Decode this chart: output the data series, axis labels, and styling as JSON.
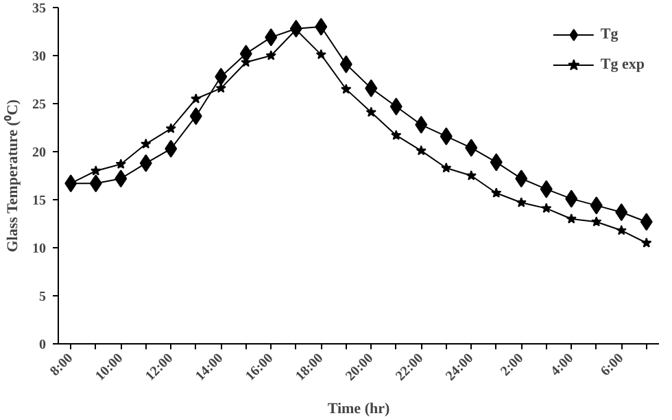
{
  "chart_data": {
    "type": "line",
    "xlabel": "Time (hr)",
    "ylabel": "Glass Temperature (⁰C)",
    "categories": [
      "8:00",
      null,
      "10:00",
      null,
      "12:00",
      null,
      "14:00",
      null,
      "16:00",
      null,
      "18:00",
      null,
      "20:00",
      null,
      "22:00",
      null,
      "24:00",
      null,
      "2:00",
      null,
      "4:00",
      null,
      "6:00",
      null
    ],
    "series": [
      {
        "name": "Tg",
        "color": "#000000",
        "marker": "diamond",
        "values": [
          16.7,
          16.7,
          17.2,
          18.8,
          20.3,
          23.7,
          27.8,
          30.2,
          31.9,
          32.8,
          33.0,
          29.1,
          26.6,
          24.7,
          22.8,
          21.6,
          20.4,
          18.9,
          17.2,
          16.1,
          15.1,
          14.4,
          13.7,
          12.7
        ]
      },
      {
        "name": "Tg exp",
        "color": "#000000",
        "marker": "star",
        "values": [
          16.7,
          18.0,
          18.7,
          20.8,
          22.4,
          25.5,
          26.6,
          29.3,
          30.0,
          32.7,
          30.1,
          26.5,
          24.1,
          21.7,
          20.1,
          18.3,
          17.5,
          15.7,
          14.7,
          14.1,
          13.0,
          12.7,
          11.8,
          10.5
        ]
      }
    ],
    "ylim": [
      0,
      35
    ],
    "yticks": [
      0,
      5,
      10,
      15,
      20,
      25,
      30,
      35
    ],
    "grid": false,
    "legend": "top right",
    "line_style": "solid"
  }
}
